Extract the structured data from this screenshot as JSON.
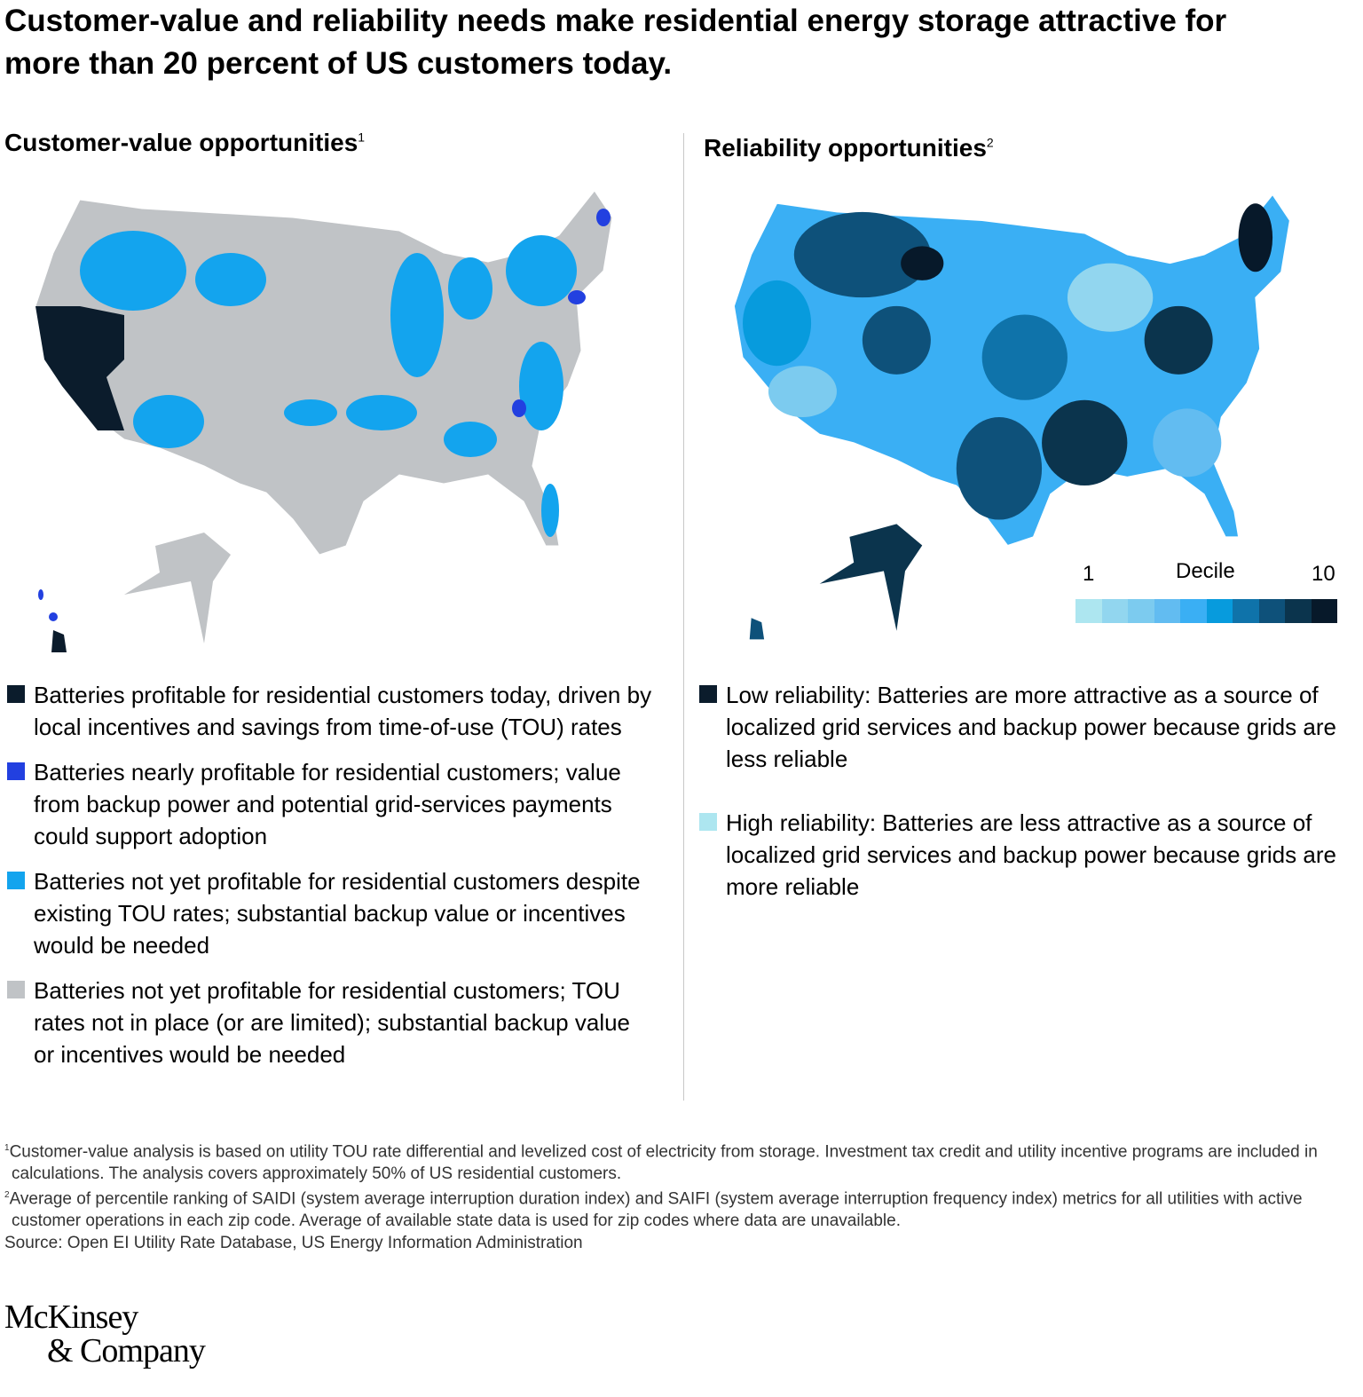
{
  "title": "Customer-value and reliability needs make residential energy storage attractive for more than 20 percent of US customers today.",
  "left": {
    "heading": "Customer-value opportunities",
    "sup": "1",
    "legend": [
      {
        "color": "#0b1c2c",
        "text": "Batteries profitable for residential customers today, driven by local incentives and savings from time-of-use (TOU) rates"
      },
      {
        "color": "#2240e0",
        "text": "Batteries nearly profitable for residential customers; value from backup power and potential grid-services payments could support adoption"
      },
      {
        "color": "#13a4ee",
        "text": "Batteries not yet profitable for residential customers despite existing TOU rates; substantial backup value or incentives would be needed"
      },
      {
        "color": "#c0c3c6",
        "text": "Batteries not yet profitable for residential customers; TOU rates not in place (or are limited); substantial backup value or incentives would be needed"
      }
    ]
  },
  "right": {
    "heading": "Reliability opportunities",
    "sup": "2",
    "decile": {
      "label": "Decile",
      "min": "1",
      "max": "10",
      "colors": [
        "#ade6f0",
        "#92d6ef",
        "#7ccbef",
        "#62bcf1",
        "#3aaff4",
        "#079bdd",
        "#0f73aa",
        "#0e517a",
        "#0b344d",
        "#07192a"
      ]
    },
    "legend": [
      {
        "color": "#0b1c2c",
        "text": "Low reliability: Batteries are more attractive as a source of localized grid services and backup power because grids are less reliable"
      },
      {
        "color": "#ade6f0",
        "text": "High reliability: Batteries are less attractive as a source of localized grid services and backup power because grids are more reliable"
      }
    ]
  },
  "footnotes": [
    {
      "sup": "1",
      "text": "Customer-value analysis is based on utility TOU rate differential and levelized cost of electricity from storage. Investment tax credit and utility incentive programs are included in calculations. The analysis covers approximately 50% of US residential customers."
    },
    {
      "sup": "2",
      "text": "Average of percentile ranking of SAIDI (system average interruption duration index) and SAIFI (system average interruption frequency index) metrics for all utilities with active customer operations in each zip code. Average of available state data is used for zip codes where data are unavailable."
    }
  ],
  "source": "Source: Open EI Utility Rate Database, US Energy Information Administration",
  "logo": {
    "line1": "McKinsey",
    "line2": "& Company"
  }
}
